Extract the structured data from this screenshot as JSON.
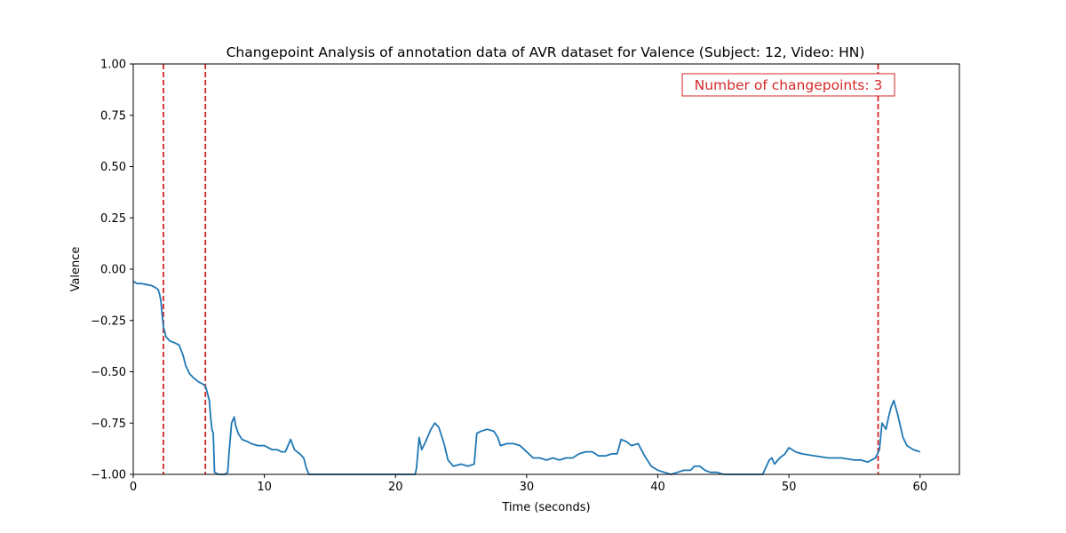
{
  "chart_data": {
    "type": "line",
    "title": "Changepoint Analysis of annotation data of AVR dataset for Valence (Subject: 12, Video: HN)",
    "xlabel": "Time (seconds)",
    "ylabel": "Valence",
    "xlim": [
      0,
      63
    ],
    "ylim": [
      -1.0,
      1.0
    ],
    "x_ticks": [
      0,
      10,
      20,
      30,
      40,
      50,
      60
    ],
    "y_ticks": [
      -1.0,
      -0.75,
      -0.5,
      -0.25,
      0.0,
      0.25,
      0.5,
      0.75,
      1.0
    ],
    "x_tick_labels": [
      "0",
      "10",
      "20",
      "30",
      "40",
      "50",
      "60"
    ],
    "y_tick_labels": [
      "−1.00",
      "−0.75",
      "−0.50",
      "−0.25",
      "0.00",
      "0.25",
      "0.50",
      "0.75",
      "1.00"
    ],
    "grid": false,
    "colors": {
      "series": "#1f77b4",
      "changepoint": "#d62728"
    },
    "series": [
      {
        "x": [
          0,
          0.3,
          0.6,
          1.0,
          1.4,
          1.7,
          1.9,
          2.0,
          2.1,
          2.2,
          2.3,
          2.5,
          2.8,
          3.2,
          3.5,
          3.8,
          4.0,
          4.3,
          4.6,
          5.0,
          5.3,
          5.5,
          5.6,
          5.8,
          5.9,
          6.0,
          6.1,
          6.2,
          6.5,
          7.0,
          7.2,
          7.3,
          7.5,
          7.7,
          7.8,
          8.0,
          8.3,
          8.7,
          9.0,
          9.5,
          10.0,
          10.3,
          10.6,
          11.0,
          11.3,
          11.6,
          11.8,
          12.0,
          12.3,
          12.7,
          13.0,
          13.2,
          13.4,
          15,
          18,
          20,
          21.0,
          21.5,
          21.6,
          21.8,
          22.0,
          22.3,
          22.7,
          23.0,
          23.3,
          23.7,
          24.0,
          24.4,
          25.0,
          25.5,
          26.0,
          26.2,
          26.5,
          27.0,
          27.5,
          27.8,
          28.0,
          28.5,
          29.0,
          29.5,
          30.0,
          30.5,
          31.0,
          31.5,
          32.0,
          32.5,
          33.0,
          33.5,
          34.0,
          34.5,
          35.0,
          35.5,
          36.0,
          36.5,
          36.9,
          37.2,
          37.6,
          38.0,
          38.5,
          39.0,
          39.5,
          40.0,
          40.5,
          41.0,
          41.5,
          42.0,
          42.5,
          42.8,
          43.2,
          43.6,
          44.0,
          44.5,
          45.0,
          46.0,
          47.0,
          48.0,
          48.5,
          48.7,
          48.9,
          49.3,
          49.7,
          50.0,
          50.5,
          51.0,
          52.0,
          53.0,
          54.0,
          55.0,
          55.5,
          56.0,
          56.3,
          56.6,
          56.9,
          57.1,
          57.4,
          57.6,
          57.8,
          58.0,
          58.3,
          58.7,
          59.0,
          59.5,
          60.0
        ],
        "y": [
          -0.06,
          -0.07,
          -0.07,
          -0.075,
          -0.08,
          -0.09,
          -0.1,
          -0.12,
          -0.15,
          -0.22,
          -0.28,
          -0.33,
          -0.35,
          -0.36,
          -0.37,
          -0.42,
          -0.47,
          -0.51,
          -0.53,
          -0.55,
          -0.56,
          -0.57,
          -0.59,
          -0.64,
          -0.72,
          -0.78,
          -0.8,
          -0.99,
          -1.0,
          -1.0,
          -0.99,
          -0.9,
          -0.75,
          -0.72,
          -0.76,
          -0.8,
          -0.83,
          -0.84,
          -0.85,
          -0.86,
          -0.86,
          -0.87,
          -0.88,
          -0.88,
          -0.89,
          -0.89,
          -0.86,
          -0.83,
          -0.88,
          -0.9,
          -0.92,
          -0.97,
          -1.0,
          -1.0,
          -1.0,
          -1.0,
          -1.0,
          -1.0,
          -0.97,
          -0.82,
          -0.88,
          -0.84,
          -0.78,
          -0.75,
          -0.77,
          -0.85,
          -0.93,
          -0.96,
          -0.95,
          -0.96,
          -0.95,
          -0.8,
          -0.79,
          -0.78,
          -0.79,
          -0.82,
          -0.86,
          -0.85,
          -0.85,
          -0.86,
          -0.89,
          -0.92,
          -0.92,
          -0.93,
          -0.92,
          -0.93,
          -0.92,
          -0.92,
          -0.9,
          -0.89,
          -0.89,
          -0.91,
          -0.91,
          -0.9,
          -0.9,
          -0.83,
          -0.84,
          -0.86,
          -0.85,
          -0.91,
          -0.96,
          -0.98,
          -0.99,
          -1.0,
          -0.99,
          -0.98,
          -0.98,
          -0.96,
          -0.96,
          -0.98,
          -0.99,
          -0.99,
          -1.0,
          -1.0,
          -1.0,
          -1.0,
          -0.93,
          -0.92,
          -0.95,
          -0.92,
          -0.9,
          -0.87,
          -0.89,
          -0.9,
          -0.91,
          -0.92,
          -0.92,
          -0.93,
          -0.93,
          -0.94,
          -0.93,
          -0.92,
          -0.88,
          -0.75,
          -0.78,
          -0.72,
          -0.67,
          -0.64,
          -0.71,
          -0.82,
          -0.86,
          -0.88,
          -0.89
        ]
      }
    ],
    "changepoints": [
      2.3,
      5.5,
      56.8
    ],
    "annotation": {
      "text": "Number of changepoints: 3",
      "position": "top-right"
    }
  }
}
